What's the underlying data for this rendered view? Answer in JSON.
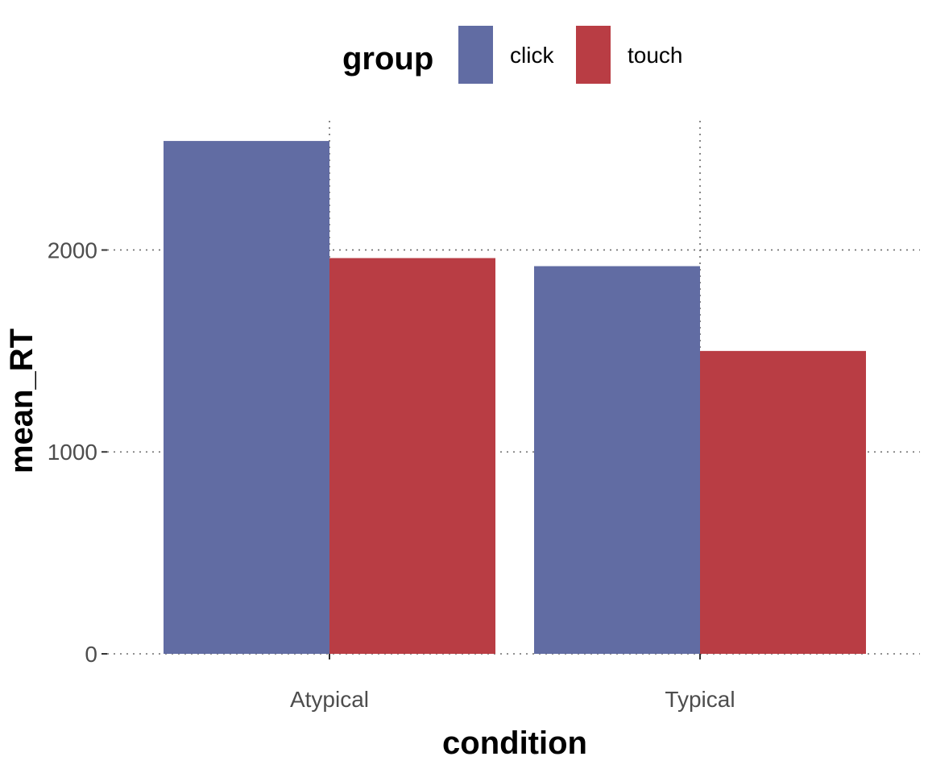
{
  "chart_data": {
    "type": "bar",
    "xlabel": "condition",
    "ylabel": "mean_RT",
    "categories": [
      "Atypical",
      "Typical"
    ],
    "series": [
      {
        "name": "click",
        "values": [
          2540,
          1920
        ],
        "color": "#616CA3"
      },
      {
        "name": "touch",
        "values": [
          1960,
          1500
        ],
        "color": "#B93D44"
      }
    ],
    "ylim": [
      0,
      2640
    ],
    "yticks": [
      0,
      1000,
      2000
    ],
    "ytick_labels": [
      "0",
      "1000",
      "2000"
    ],
    "legend": {
      "title": "group",
      "position": "top"
    },
    "grid": true
  }
}
